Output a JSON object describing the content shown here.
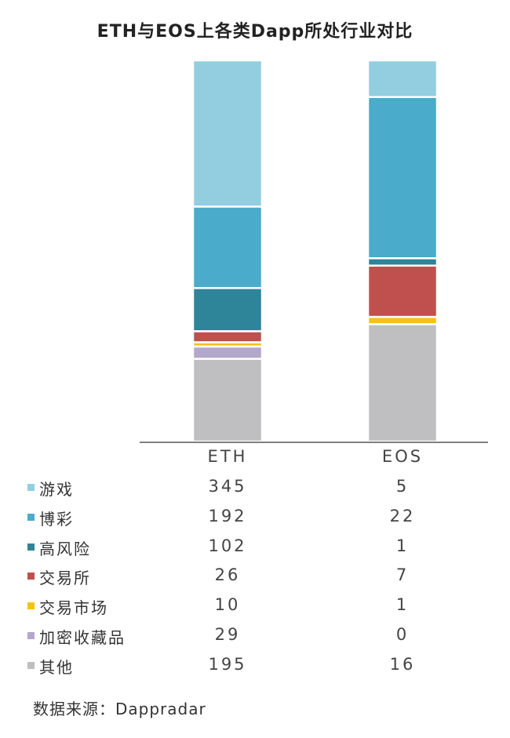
{
  "chart_data": {
    "type": "bar",
    "stacked": true,
    "normalized": true,
    "title": "ETH与EOS上各类Dapp所处行业对比",
    "categories": [
      "ETH",
      "EOS"
    ],
    "series": [
      {
        "name": "游戏",
        "color": "#93cde0",
        "values": [
          345,
          5
        ]
      },
      {
        "name": "博彩",
        "color": "#4aabca",
        "values": [
          192,
          22
        ]
      },
      {
        "name": "高风险",
        "color": "#2e8499",
        "values": [
          102,
          1
        ]
      },
      {
        "name": "交易所",
        "color": "#c0504d",
        "values": [
          26,
          7
        ]
      },
      {
        "name": "交易市场",
        "color": "#f5c21a",
        "values": [
          10,
          1
        ]
      },
      {
        "name": "加密收藏品",
        "color": "#b4a7cc",
        "values": [
          29,
          0
        ]
      },
      {
        "name": "其他",
        "color": "#bfbec0",
        "values": [
          195,
          16
        ]
      }
    ],
    "source": "数据来源：Dappradar"
  }
}
